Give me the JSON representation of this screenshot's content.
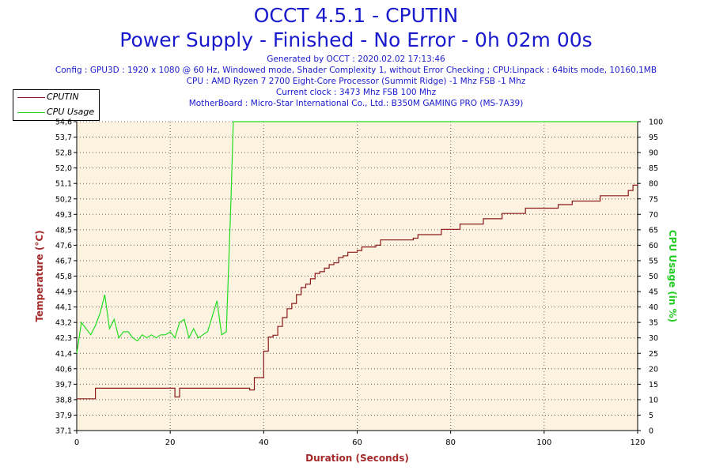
{
  "header": {
    "title": "OCCT 4.5.1 - CPUTIN",
    "subtitle": "Power Supply - Finished - No Error - 0h 02m 00s",
    "info_lines": [
      "Generated by OCCT : 2020.02.02 17:13:46",
      "Config : GPU3D : 1920 x 1080 @ 60 Hz, Windowed mode, Shader Complexity 1, without Error Checking ; CPU:Linpack : 64bits mode, 10160,1MB",
      "CPU : AMD Ryzen 7 2700 Eight-Core Processor (Summit Ridge) -1 Mhz FSB -1 Mhz",
      "Current clock : 3473 Mhz FSB 100 Mhz",
      "MotherBoard : Micro-Star International Co., Ltd.: B350M GAMING PRO (MS-7A39)"
    ]
  },
  "legend": {
    "placement": "top-left",
    "items": [
      {
        "label": "CPUTIN",
        "color": "#8b1a1a"
      },
      {
        "label": "CPU Usage",
        "color": "#22dd22"
      }
    ]
  },
  "chart_data": {
    "type": "line",
    "title": "OCCT 4.5.1 - CPUTIN",
    "xlabel": "Duration (Seconds)",
    "ylabel": "Temperature (°C)",
    "y2label": "CPU Usage (in %)",
    "xlim": [
      0,
      120
    ],
    "ylim": [
      37.1,
      54.6
    ],
    "y2lim": [
      0,
      100
    ],
    "grid": true,
    "legend_placement": "top-left",
    "x_ticks": [
      "0",
      "20",
      "40",
      "60",
      "80",
      "100",
      "120"
    ],
    "y_ticks": [
      "37,1",
      "37,9",
      "38,8",
      "39,7",
      "40,6",
      "41,4",
      "42,3",
      "43,2",
      "44,1",
      "44,9",
      "45,8",
      "46,7",
      "47,6",
      "48,5",
      "49,3",
      "50,2",
      "51,1",
      "52,0",
      "52,8",
      "53,7",
      "54,6"
    ],
    "y2_ticks": [
      "0",
      "5",
      "10",
      "15",
      "20",
      "25",
      "30",
      "35",
      "40",
      "45",
      "50",
      "55",
      "60",
      "65",
      "70",
      "75",
      "80",
      "85",
      "90",
      "95",
      "100"
    ],
    "series": [
      {
        "name": "CPUTIN",
        "axis": "left",
        "color": "#8b1a1a",
        "x": [
          0,
          3.5,
          4,
          20,
          21,
          22,
          36,
          37,
          38,
          40,
          41,
          42,
          43,
          44,
          45,
          46,
          47,
          48,
          49,
          50,
          51,
          52,
          53,
          54,
          55,
          56,
          57,
          58,
          60,
          61,
          62,
          64,
          65,
          68,
          72,
          73,
          77,
          78,
          81,
          82,
          86,
          87,
          90,
          91,
          95,
          96,
          100,
          103,
          106,
          107,
          111,
          112,
          117,
          118,
          119,
          120
        ],
        "y": [
          38.9,
          38.9,
          39.5,
          39.5,
          39.0,
          39.5,
          39.5,
          39.4,
          40.1,
          41.6,
          42.4,
          42.5,
          43.0,
          43.5,
          44.0,
          44.3,
          44.8,
          45.2,
          45.4,
          45.7,
          46.0,
          46.1,
          46.3,
          46.5,
          46.6,
          46.9,
          47.0,
          47.2,
          47.3,
          47.5,
          47.5,
          47.6,
          47.9,
          47.9,
          48.0,
          48.2,
          48.2,
          48.5,
          48.5,
          48.8,
          48.8,
          49.1,
          49.1,
          49.4,
          49.4,
          49.7,
          49.7,
          49.9,
          50.1,
          50.1,
          50.1,
          50.4,
          50.4,
          50.7,
          51.0,
          51.0
        ]
      },
      {
        "name": "CPU Usage",
        "axis": "right",
        "color": "#22dd22",
        "x": [
          0,
          1,
          2,
          3,
          4,
          5,
          6,
          7,
          8,
          9,
          10,
          11,
          12,
          13,
          14,
          15,
          16,
          17,
          18,
          19,
          20,
          21,
          22,
          23,
          24,
          25,
          26,
          27,
          28,
          29,
          30,
          31,
          32,
          33,
          33.5,
          34,
          120
        ],
        "y": [
          25,
          35,
          33,
          31,
          34,
          38,
          44,
          33,
          36,
          30,
          32,
          32,
          30,
          29,
          31,
          30,
          31,
          30,
          31,
          31,
          32,
          30,
          35,
          36,
          30,
          33,
          30,
          31,
          32,
          37,
          42,
          31,
          32,
          75,
          100,
          100,
          100
        ]
      }
    ]
  }
}
